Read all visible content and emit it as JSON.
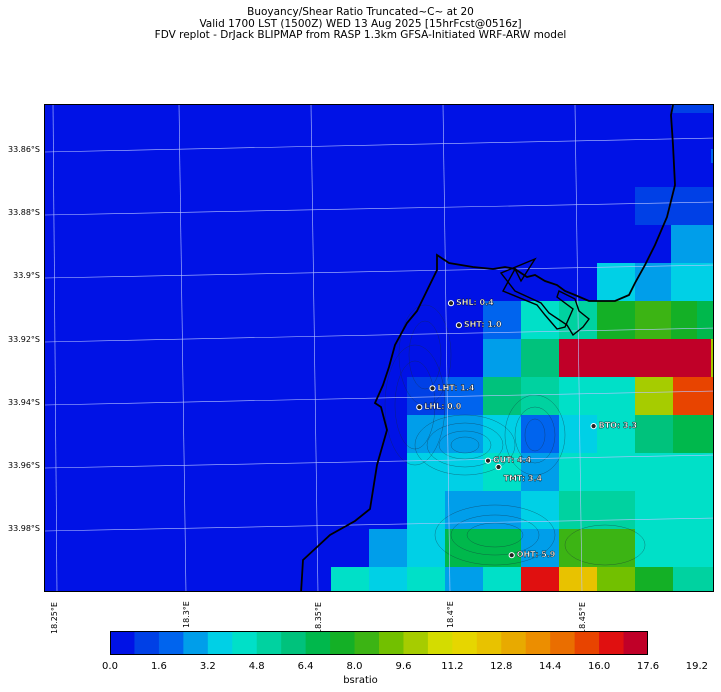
{
  "header": {
    "line1": "Buoyancy/Shear Ratio Truncated~C~    at 20",
    "line2": "Valid 1700 LST (1500Z) WED 13 Aug 2025 [15hrFcst@0516z]",
    "line3": "FDV replot - DrJack BLIPMAP from RASP 1.3km GFSA-Initiated WRF-ARW model"
  },
  "map": {
    "lat_labels": [
      "33.86°S",
      "33.88°S",
      "33.9°S",
      "33.92°S",
      "33.94°S",
      "33.96°S",
      "33.98°S"
    ],
    "lon_labels": [
      "18.25°E",
      "18.3°E",
      "18.35°E",
      "18.4°E",
      "18.45°E"
    ],
    "stations": [
      {
        "label": "SHL: 0.4",
        "lon": 18.4,
        "lat": -33.908,
        "value": 0.4
      },
      {
        "label": "SHT: 1.0",
        "lon": 18.403,
        "lat": -33.915,
        "value": 1.0
      },
      {
        "label": "LHT: 1.4",
        "lon": 18.393,
        "lat": -33.935,
        "value": 1.4
      },
      {
        "label": "LHL: 0.0",
        "lon": 18.388,
        "lat": -33.941,
        "value": 0.0
      },
      {
        "label": "GUT: 4.4",
        "lon": 18.414,
        "lat": -33.958,
        "value": 4.4
      },
      {
        "label": "TMT: 3.4",
        "lon": 18.418,
        "lat": -33.96,
        "value": 3.4
      },
      {
        "label": "BTO: 3.3",
        "lon": 18.454,
        "lat": -33.947,
        "value": 3.3
      },
      {
        "label": "OHT: 5.9",
        "lon": 18.423,
        "lat": -33.988,
        "value": 5.9
      }
    ]
  },
  "colorbar": {
    "label": "bsratio",
    "ticks": [
      "0.0",
      "1.6",
      "3.2",
      "4.8",
      "6.4",
      "8.0",
      "9.6",
      "11.2",
      "12.8",
      "14.4",
      "16.0",
      "17.6",
      "19.2"
    ],
    "colors": [
      "#0012e6",
      "#0040e6",
      "#0064ee",
      "#009eea",
      "#00d0e6",
      "#00e0c8",
      "#00d2a0",
      "#00c27c",
      "#00b84c",
      "#14b026",
      "#3cb414",
      "#72c000",
      "#a6cc00",
      "#d4dc00",
      "#e6d600",
      "#e8c200",
      "#e8aa00",
      "#ec8e00",
      "#ea6e00",
      "#e84400",
      "#e01010",
      "#c00028"
    ]
  },
  "chart_data": {
    "type": "heatmap",
    "title": "Buoyancy/Shear Ratio Truncated~C~    at 20",
    "colorbar_label": "bsratio",
    "colorbar_range": [
      0.0,
      20.8
    ],
    "station_values": {
      "SHL": 0.4,
      "SHT": 1.0,
      "LHT": 1.4,
      "LHL": 0.0,
      "GUT": 4.4,
      "TMT": 3.4,
      "BTO": 3.3,
      "OHT": 5.9
    }
  }
}
